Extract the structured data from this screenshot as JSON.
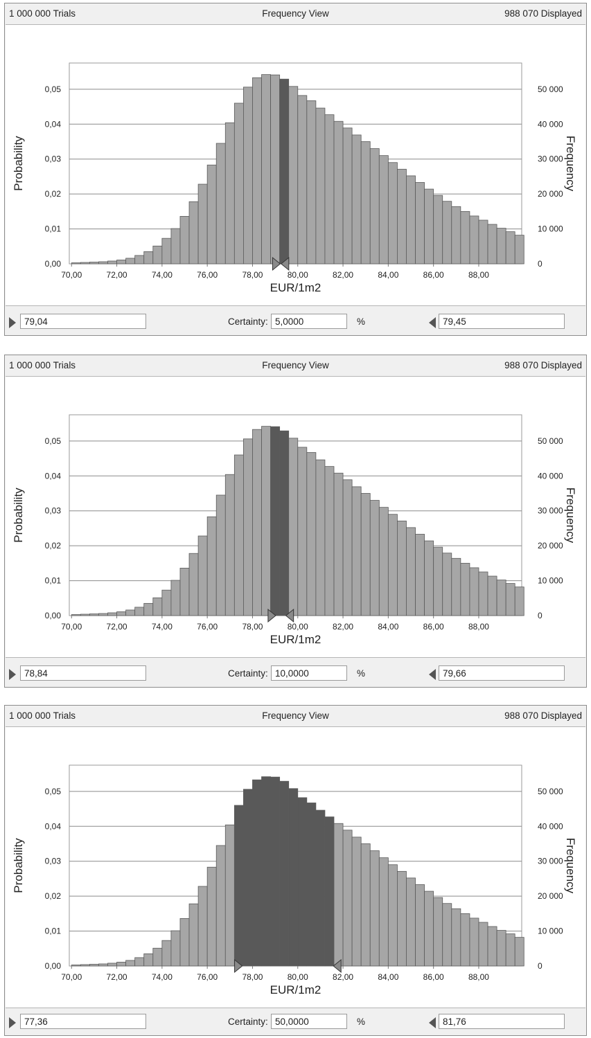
{
  "panels": [
    {
      "trials": "1 000 000 Trials",
      "view": "Frequency View",
      "displayed": "988 070 Displayed",
      "lower": "79,04",
      "certainty_label": "Certainty:",
      "certainty": "5,0000",
      "percent": "%",
      "upper": "79,45"
    },
    {
      "trials": "1 000 000 Trials",
      "view": "Frequency View",
      "displayed": "988 070 Displayed",
      "lower": "78,84",
      "certainty_label": "Certainty:",
      "certainty": "10,0000",
      "percent": "%",
      "upper": "79,66"
    },
    {
      "trials": "1 000 000 Trials",
      "view": "Frequency View",
      "displayed": "988 070 Displayed",
      "lower": "77,36",
      "certainty_label": "Certainty:",
      "certainty": "50,0000",
      "percent": "%",
      "upper": "81,76"
    }
  ],
  "colors": {
    "bar": "#a6a6a6",
    "bar_selected": "#595959",
    "bar_edge": "#5a5a5a",
    "grid": "#8a8a8a"
  },
  "chart_data": [
    {
      "type": "bar",
      "xlabel": "EUR/1m2",
      "ylabel": "Probability",
      "y2label": "Frequency",
      "xlim": [
        69.9,
        89.9
      ],
      "ylim": [
        0,
        0.0575
      ],
      "y2lim": [
        0,
        57500
      ],
      "x_ticks": [
        "70,00",
        "72,00",
        "74,00",
        "76,00",
        "78,00",
        "80,00",
        "82,00",
        "84,00",
        "86,00",
        "88,00"
      ],
      "y_ticks": [
        "0,00",
        "0,01",
        "0,02",
        "0,03",
        "0,04",
        "0,05"
      ],
      "y2_ticks": [
        "0",
        "10 000",
        "20 000",
        "30 000",
        "40 000",
        "50 000"
      ],
      "grid": true,
      "bin_start": 70.0,
      "bin_width": 0.4,
      "values": [
        0.0003,
        0.0004,
        0.0005,
        0.0006,
        0.0008,
        0.0011,
        0.0016,
        0.0024,
        0.0035,
        0.0051,
        0.0073,
        0.0101,
        0.0136,
        0.0178,
        0.0228,
        0.0283,
        0.0345,
        0.0404,
        0.046,
        0.0506,
        0.0533,
        0.0542,
        0.0541,
        0.0529,
        0.0508,
        0.0482,
        0.0467,
        0.0446,
        0.0427,
        0.0408,
        0.0389,
        0.0369,
        0.035,
        0.033,
        0.031,
        0.029,
        0.0271,
        0.0252,
        0.0233,
        0.0214,
        0.0196,
        0.0179,
        0.0164,
        0.015,
        0.0137,
        0.0125,
        0.0113,
        0.0102,
        0.0092,
        0.0082
      ],
      "selection": [
        79.04,
        79.45
      ]
    },
    {
      "type": "bar",
      "xlabel": "EUR/1m2",
      "ylabel": "Probability",
      "y2label": "Frequency",
      "xlim": [
        69.9,
        89.9
      ],
      "ylim": [
        0,
        0.0575
      ],
      "y2lim": [
        0,
        57500
      ],
      "x_ticks": [
        "70,00",
        "72,00",
        "74,00",
        "76,00",
        "78,00",
        "80,00",
        "82,00",
        "84,00",
        "86,00",
        "88,00"
      ],
      "y_ticks": [
        "0,00",
        "0,01",
        "0,02",
        "0,03",
        "0,04",
        "0,05"
      ],
      "y2_ticks": [
        "0",
        "10 000",
        "20 000",
        "30 000",
        "40 000",
        "50 000"
      ],
      "grid": true,
      "bin_start": 70.0,
      "bin_width": 0.4,
      "values": [
        0.0003,
        0.0004,
        0.0005,
        0.0006,
        0.0008,
        0.0011,
        0.0016,
        0.0024,
        0.0035,
        0.0051,
        0.0073,
        0.0101,
        0.0136,
        0.0178,
        0.0228,
        0.0283,
        0.0345,
        0.0404,
        0.046,
        0.0506,
        0.0533,
        0.0542,
        0.0541,
        0.0529,
        0.0508,
        0.0482,
        0.0467,
        0.0446,
        0.0427,
        0.0408,
        0.0389,
        0.0369,
        0.035,
        0.033,
        0.031,
        0.029,
        0.0271,
        0.0252,
        0.0233,
        0.0214,
        0.0196,
        0.0179,
        0.0164,
        0.015,
        0.0137,
        0.0125,
        0.0113,
        0.0102,
        0.0092,
        0.0082
      ],
      "selection": [
        78.84,
        79.66
      ]
    },
    {
      "type": "bar",
      "xlabel": "EUR/1m2",
      "ylabel": "Probability",
      "y2label": "Frequency",
      "xlim": [
        69.9,
        89.9
      ],
      "ylim": [
        0,
        0.0575
      ],
      "y2lim": [
        0,
        57500
      ],
      "x_ticks": [
        "70,00",
        "72,00",
        "74,00",
        "76,00",
        "78,00",
        "80,00",
        "82,00",
        "84,00",
        "86,00",
        "88,00"
      ],
      "y_ticks": [
        "0,00",
        "0,01",
        "0,02",
        "0,03",
        "0,04",
        "0,05"
      ],
      "y2_ticks": [
        "0",
        "10 000",
        "20 000",
        "30 000",
        "40 000",
        "50 000"
      ],
      "grid": true,
      "bin_start": 70.0,
      "bin_width": 0.4,
      "values": [
        0.0003,
        0.0004,
        0.0005,
        0.0006,
        0.0008,
        0.0011,
        0.0016,
        0.0024,
        0.0035,
        0.0051,
        0.0073,
        0.0101,
        0.0136,
        0.0178,
        0.0228,
        0.0283,
        0.0345,
        0.0404,
        0.046,
        0.0506,
        0.0533,
        0.0542,
        0.0541,
        0.0529,
        0.0508,
        0.0482,
        0.0467,
        0.0446,
        0.0427,
        0.0408,
        0.0389,
        0.0369,
        0.035,
        0.033,
        0.031,
        0.029,
        0.0271,
        0.0252,
        0.0233,
        0.0214,
        0.0196,
        0.0179,
        0.0164,
        0.015,
        0.0137,
        0.0125,
        0.0113,
        0.0102,
        0.0092,
        0.0082
      ],
      "selection": [
        77.36,
        81.76
      ]
    }
  ]
}
